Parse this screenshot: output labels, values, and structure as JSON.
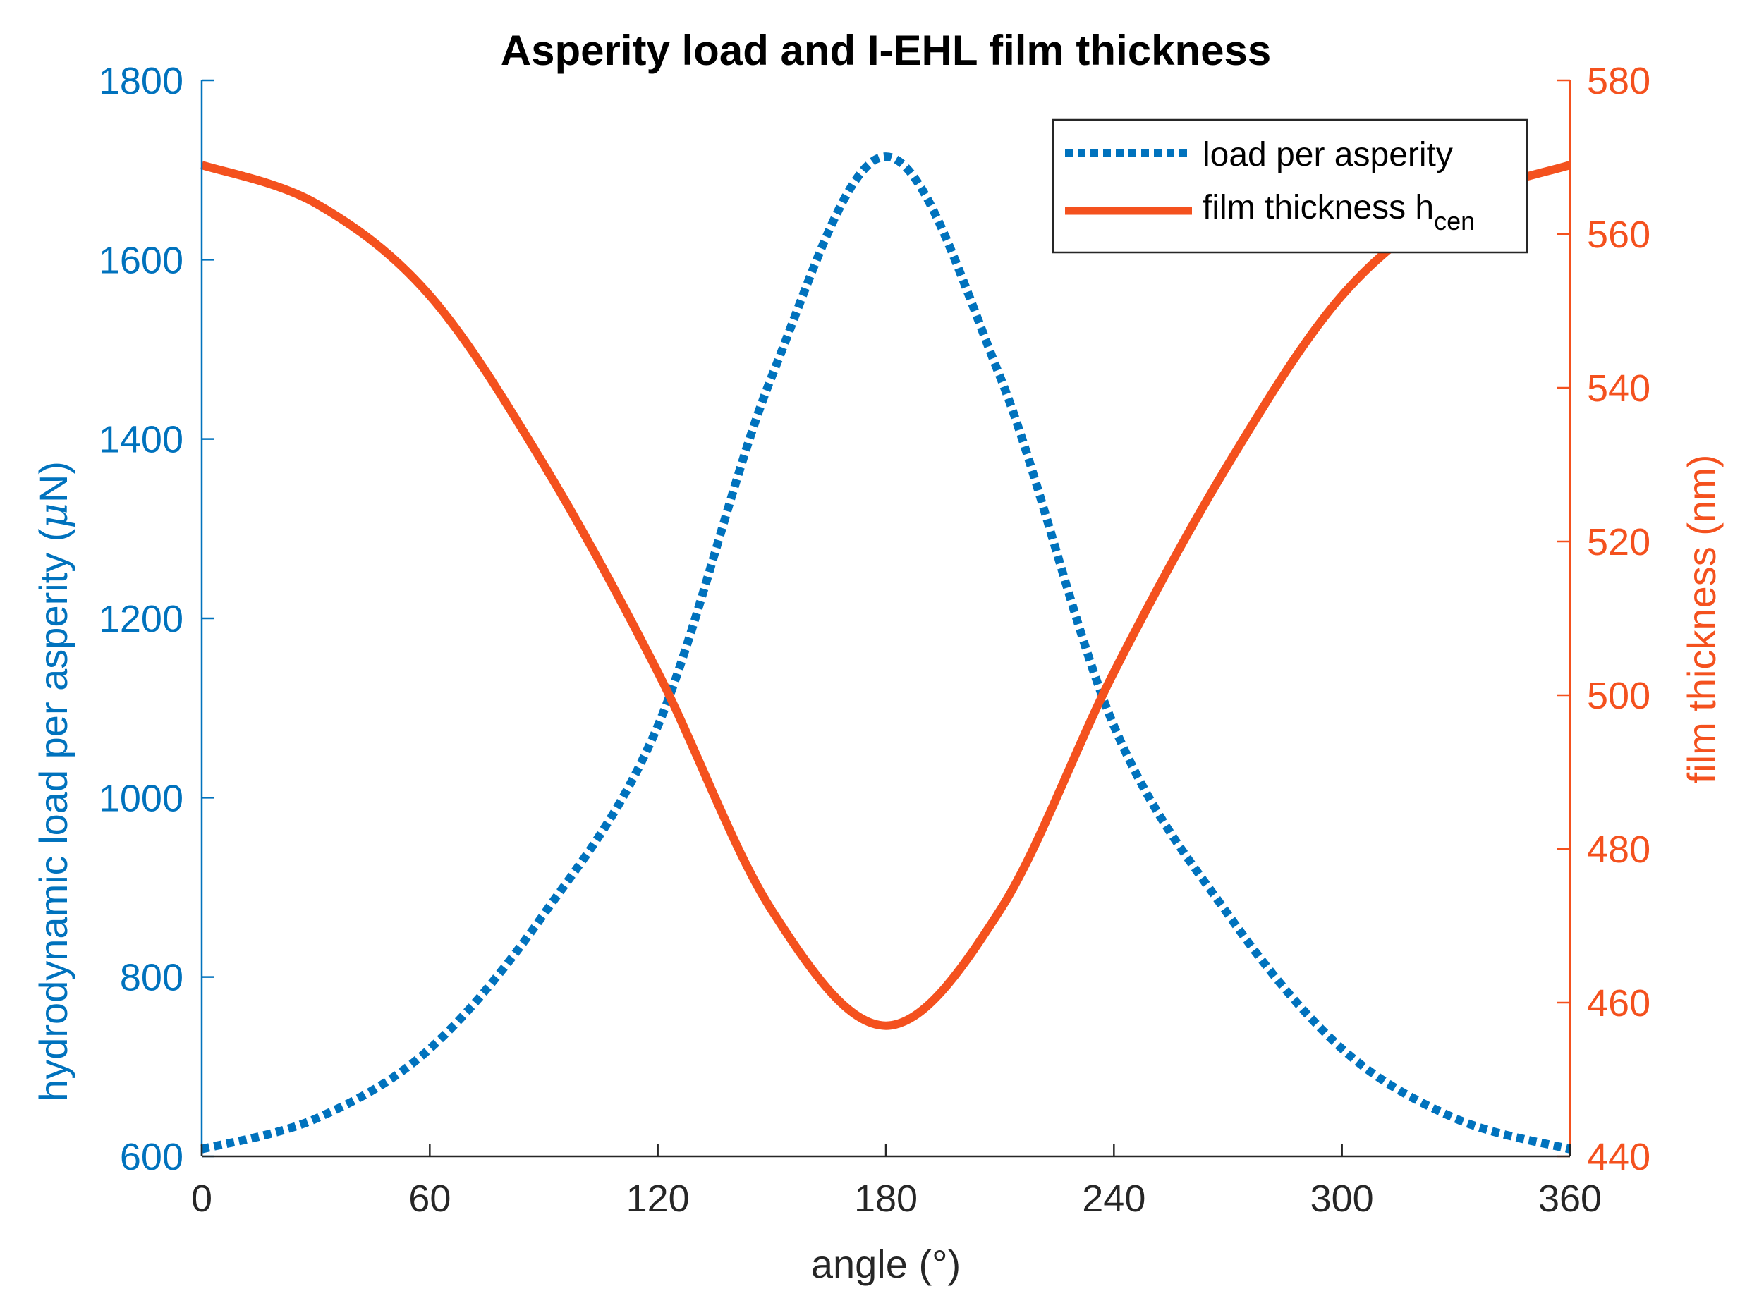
{
  "chart_data": {
    "type": "line",
    "title": "Asperity load and I-EHL film thickness",
    "xlabel": "angle (°)",
    "x_ticks": [
      0,
      60,
      120,
      180,
      240,
      300,
      360
    ],
    "xlim": [
      0,
      360
    ],
    "y_left": {
      "label_main": "hydrodynamic load per asperity (",
      "label_mu": "μ",
      "label_end": "N)",
      "lim": [
        600,
        1800
      ],
      "ticks": [
        600,
        800,
        1000,
        1200,
        1400,
        1600,
        1800
      ],
      "color": "#0072BD"
    },
    "y_right": {
      "label": "film thickness (nm)",
      "lim": [
        440,
        580
      ],
      "ticks": [
        440,
        460,
        480,
        500,
        520,
        540,
        560,
        580
      ],
      "color": "#F4511E"
    },
    "legend": {
      "placement": "top-right",
      "entries": [
        {
          "text": "load per asperity",
          "sub": ""
        },
        {
          "text": "film thickness h",
          "sub": "cen"
        }
      ]
    },
    "series": [
      {
        "name": "load per asperity",
        "axis": "left",
        "style": "dotted",
        "color": "#0072BD",
        "x": [
          0,
          30,
          60,
          90,
          120,
          150,
          180,
          210,
          240,
          270,
          300,
          330,
          360
        ],
        "y": [
          608,
          642,
          720,
          870,
          1080,
          1470,
          1715,
          1470,
          1080,
          870,
          720,
          642,
          608
        ]
      },
      {
        "name": "film thickness h_cen",
        "axis": "right",
        "style": "solid",
        "color": "#F4511E",
        "x": [
          0,
          30,
          60,
          90,
          120,
          150,
          180,
          210,
          240,
          270,
          300,
          330,
          360
        ],
        "y": [
          569,
          564,
          552,
          530,
          503,
          472,
          457,
          472,
          503,
          530,
          552,
          564,
          569
        ]
      }
    ]
  }
}
